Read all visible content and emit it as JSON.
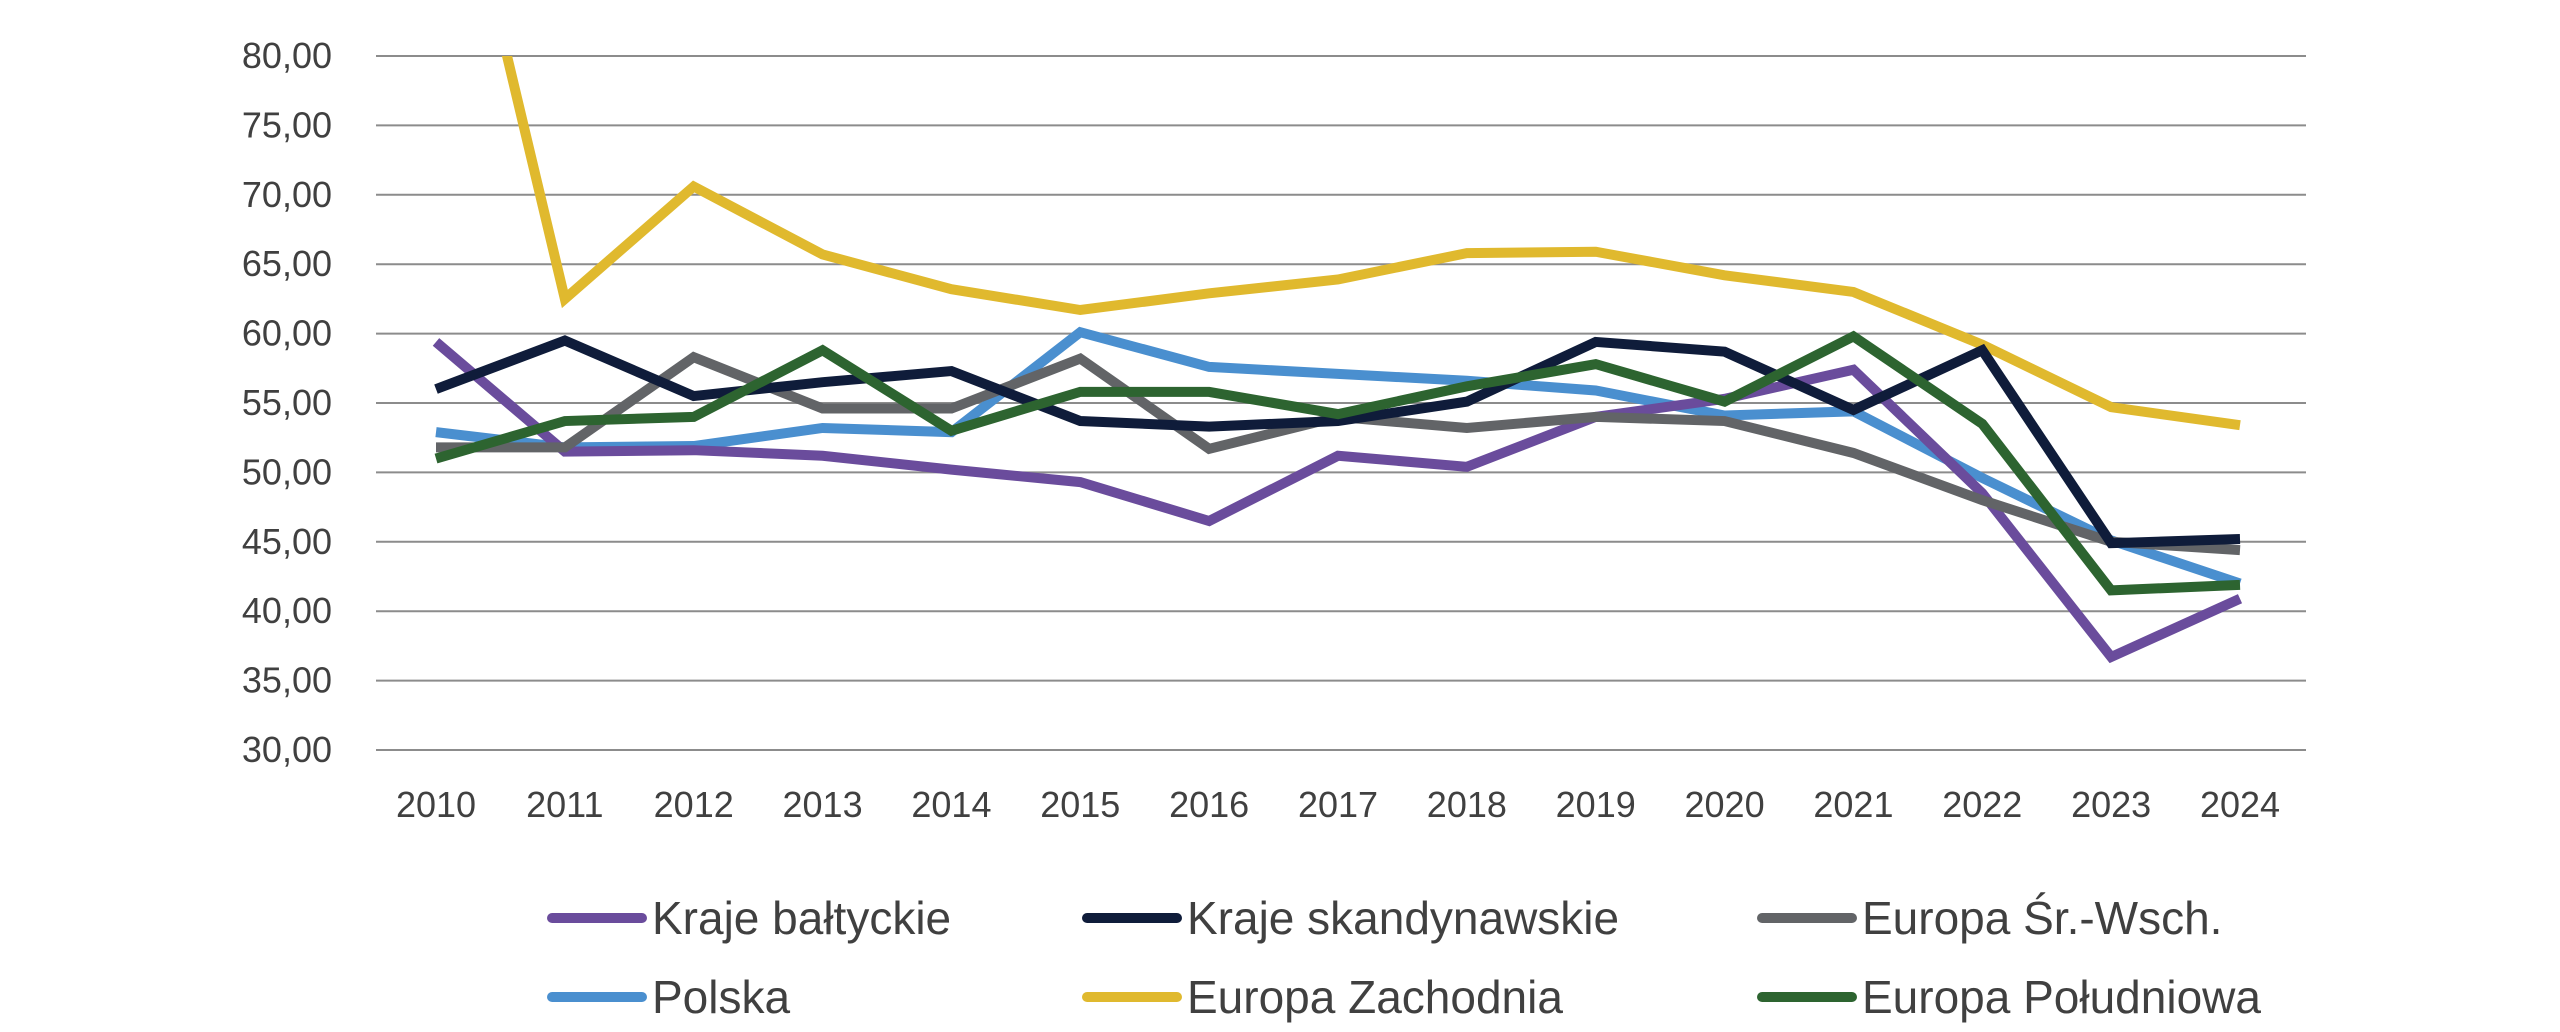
{
  "chart_data": {
    "type": "line",
    "title": "",
    "xlabel": "",
    "ylabel": "",
    "x": [
      "2010",
      "2011",
      "2012",
      "2013",
      "2014",
      "2015",
      "2016",
      "2017",
      "2018",
      "2019",
      "2020",
      "2021",
      "2022",
      "2023",
      "2024"
    ],
    "ylim": [
      30,
      80
    ],
    "yticks": [
      "30,00",
      "35,00",
      "40,00",
      "45,00",
      "50,00",
      "55,00",
      "60,00",
      "65,00",
      "70,00",
      "75,00",
      "80,00"
    ],
    "ytick_values": [
      30,
      35,
      40,
      45,
      50,
      55,
      60,
      65,
      70,
      75,
      80
    ],
    "grid": true,
    "legend_position": "bottom",
    "series": [
      {
        "name": "Kraje bałtyckie",
        "color": "#6a4c9c",
        "values": [
          59.4,
          51.5,
          51.6,
          51.2,
          50.2,
          49.3,
          46.5,
          51.2,
          50.4,
          54.0,
          55.3,
          57.4,
          48.5,
          36.7,
          40.9
        ]
      },
      {
        "name": "Kraje skandynawskie",
        "color": "#0f1c3a",
        "values": [
          56.0,
          59.5,
          55.5,
          56.5,
          57.3,
          53.7,
          53.3,
          53.7,
          55.1,
          59.4,
          58.7,
          54.5,
          58.8,
          44.9,
          45.2
        ]
      },
      {
        "name": "Europa Śr.-Wsch.",
        "color": "#626467",
        "values": [
          51.8,
          51.8,
          58.3,
          54.6,
          54.6,
          58.2,
          51.7,
          54.0,
          53.2,
          54.0,
          53.7,
          51.4,
          48.0,
          45.0,
          44.4
        ]
      },
      {
        "name": "Polska",
        "color": "#4a8fcf",
        "values": [
          52.9,
          51.8,
          51.9,
          53.2,
          52.9,
          60.1,
          57.6,
          57.1,
          56.6,
          55.9,
          54.1,
          54.4,
          49.6,
          45.1,
          42.0
        ]
      },
      {
        "name": "Europa Zachodnia",
        "color": "#e0b92e",
        "values": [
          101.5,
          62.5,
          70.6,
          65.7,
          63.2,
          61.7,
          62.9,
          63.9,
          65.8,
          65.9,
          64.2,
          63.0,
          59.2,
          54.7,
          53.4
        ]
      },
      {
        "name": "Europa Południowa",
        "color": "#2d6430",
        "values": [
          51.0,
          53.7,
          54.0,
          58.8,
          53.0,
          55.8,
          55.8,
          54.2,
          56.2,
          57.8,
          55.1,
          59.8,
          53.5,
          41.5,
          41.9
        ]
      }
    ]
  }
}
